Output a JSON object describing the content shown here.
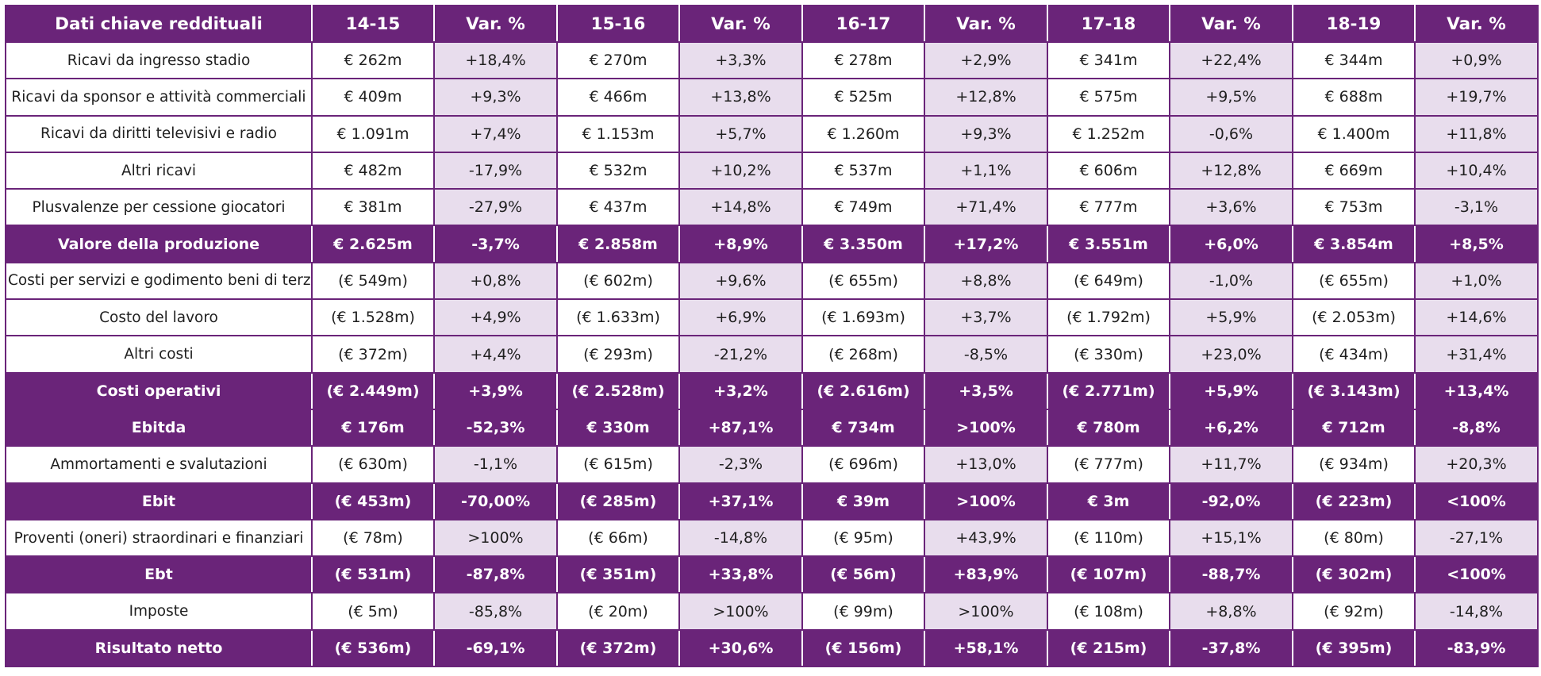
{
  "colors": {
    "accent": "#6a2479",
    "pct_bg": "#e8dded",
    "row_bg": "#ffffff",
    "header_text": "#ffffff"
  },
  "chart_data": {
    "type": "table",
    "columns": [
      "Dati chiave reddituali",
      "14-15",
      "Var. %",
      "15-16",
      "Var. %",
      "16-17",
      "Var. %",
      "17-18",
      "Var. %",
      "18-19",
      "Var. %"
    ],
    "rows": [
      {
        "bold": false,
        "cells": [
          "Ricavi da ingresso stadio",
          "€ 262m",
          "+18,4%",
          "€ 270m",
          "+3,3%",
          "€ 278m",
          "+2,9%",
          "€ 341m",
          "+22,4%",
          "€ 344m",
          "+0,9%"
        ]
      },
      {
        "bold": false,
        "cells": [
          "Ricavi da sponsor e attività commerciali",
          "€ 409m",
          "+9,3%",
          "€ 466m",
          "+13,8%",
          "€ 525m",
          "+12,8%",
          "€ 575m",
          "+9,5%",
          "€ 688m",
          "+19,7%"
        ]
      },
      {
        "bold": false,
        "cells": [
          "Ricavi da diritti televisivi e radio",
          "€ 1.091m",
          "+7,4%",
          "€ 1.153m",
          "+5,7%",
          "€ 1.260m",
          "+9,3%",
          "€ 1.252m",
          "-0,6%",
          "€ 1.400m",
          "+11,8%"
        ]
      },
      {
        "bold": false,
        "cells": [
          "Altri ricavi",
          "€ 482m",
          "-17,9%",
          "€ 532m",
          "+10,2%",
          "€ 537m",
          "+1,1%",
          "€ 606m",
          "+12,8%",
          "€ 669m",
          "+10,4%"
        ]
      },
      {
        "bold": false,
        "cells": [
          "Plusvalenze per cessione giocatori",
          "€ 381m",
          "-27,9%",
          "€ 437m",
          "+14,8%",
          "€ 749m",
          "+71,4%",
          "€ 777m",
          "+3,6%",
          "€ 753m",
          "-3,1%"
        ]
      },
      {
        "bold": true,
        "cells": [
          "Valore della produzione",
          "€ 2.625m",
          "-3,7%",
          "€ 2.858m",
          "+8,9%",
          "€ 3.350m",
          "+17,2%",
          "€ 3.551m",
          "+6,0%",
          "€ 3.854m",
          "+8,5%"
        ]
      },
      {
        "bold": false,
        "cells": [
          "Costi per servizi e godimento beni di terzi",
          "(€ 549m)",
          "+0,8%",
          "(€ 602m)",
          "+9,6%",
          "(€ 655m)",
          "+8,8%",
          "(€ 649m)",
          "-1,0%",
          "(€ 655m)",
          "+1,0%"
        ]
      },
      {
        "bold": false,
        "cells": [
          "Costo del lavoro",
          "(€ 1.528m)",
          "+4,9%",
          "(€ 1.633m)",
          "+6,9%",
          "(€ 1.693m)",
          "+3,7%",
          "(€ 1.792m)",
          "+5,9%",
          "(€ 2.053m)",
          "+14,6%"
        ]
      },
      {
        "bold": false,
        "cells": [
          "Altri costi",
          "(€ 372m)",
          "+4,4%",
          "(€ 293m)",
          "-21,2%",
          "(€ 268m)",
          "-8,5%",
          "(€ 330m)",
          "+23,0%",
          "(€ 434m)",
          "+31,4%"
        ]
      },
      {
        "bold": true,
        "cells": [
          "Costi operativi",
          "(€ 2.449m)",
          "+3,9%",
          "(€ 2.528m)",
          "+3,2%",
          "(€ 2.616m)",
          "+3,5%",
          "(€ 2.771m)",
          "+5,9%",
          "(€ 3.143m)",
          "+13,4%"
        ]
      },
      {
        "bold": true,
        "cells": [
          "Ebitda",
          "€ 176m",
          "-52,3%",
          "€ 330m",
          "+87,1%",
          "€ 734m",
          ">100%",
          "€ 780m",
          "+6,2%",
          "€ 712m",
          "-8,8%"
        ]
      },
      {
        "bold": false,
        "cells": [
          "Ammortamenti e svalutazioni",
          "(€ 630m)",
          "-1,1%",
          "(€ 615m)",
          "-2,3%",
          "(€ 696m)",
          "+13,0%",
          "(€ 777m)",
          "+11,7%",
          "(€ 934m)",
          "+20,3%"
        ]
      },
      {
        "bold": true,
        "cells": [
          "Ebit",
          "(€ 453m)",
          "-70,00%",
          "(€ 285m)",
          "+37,1%",
          "€ 39m",
          ">100%",
          "€ 3m",
          "-92,0%",
          "(€ 223m)",
          "<100%"
        ]
      },
      {
        "bold": false,
        "cells": [
          "Proventi (oneri) straordinari e finanziari",
          "(€ 78m)",
          ">100%",
          "(€ 66m)",
          "-14,8%",
          "(€ 95m)",
          "+43,9%",
          "(€ 110m)",
          "+15,1%",
          "(€ 80m)",
          "-27,1%"
        ]
      },
      {
        "bold": true,
        "cells": [
          "Ebt",
          "(€ 531m)",
          "-87,8%",
          "(€ 351m)",
          "+33,8%",
          "(€ 56m)",
          "+83,9%",
          "(€ 107m)",
          "-88,7%",
          "(€ 302m)",
          "<100%"
        ]
      },
      {
        "bold": false,
        "cells": [
          "Imposte",
          "(€ 5m)",
          "-85,8%",
          "(€ 20m)",
          ">100%",
          "(€ 99m)",
          ">100%",
          "(€ 108m)",
          "+8,8%",
          "(€ 92m)",
          "-14,8%"
        ]
      },
      {
        "bold": true,
        "cells": [
          "Risultato netto",
          "(€ 536m)",
          "-69,1%",
          "(€ 372m)",
          "+30,6%",
          "(€ 156m)",
          "+58,1%",
          "(€ 215m)",
          "-37,8%",
          "(€ 395m)",
          "-83,9%"
        ]
      }
    ]
  }
}
